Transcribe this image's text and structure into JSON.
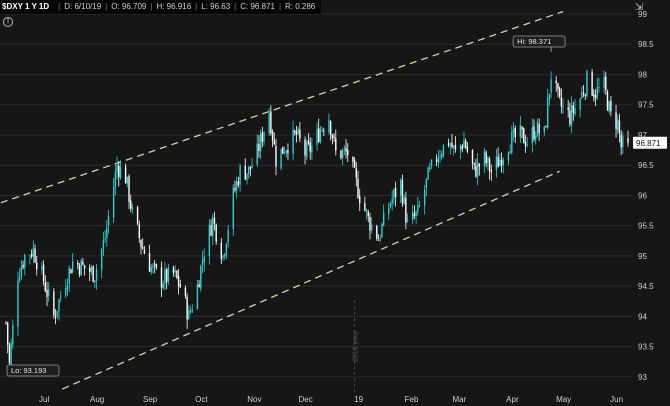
{
  "header": {
    "symbol": "$DXY 1 Y 1D",
    "fields": [
      "D: 6/10/19",
      "O: 96.709",
      "H: 96.916",
      "L: 96.63",
      "C: 96.871",
      "R: 0.286"
    ]
  },
  "icons": {
    "info": "info-icon",
    "corner": "pin-icon"
  },
  "colors": {
    "background": "#161616",
    "up_candle": "#2fd0cf",
    "down_candle": "#ffffff",
    "trendline": "#d7d0a8",
    "grid": "#2b2b2b",
    "price_tag_bg": "#ffffff",
    "price_tag_text": "#111111"
  },
  "chart_data": {
    "type": "candlestick",
    "title": "$DXY 1 Y 1D",
    "y_axis": {
      "side": "right",
      "ticks": [
        "99",
        "98.5",
        "98",
        "97.5",
        "97",
        "96.5",
        "96",
        "95.5",
        "95",
        "94.5",
        "94",
        "93.5",
        "93"
      ],
      "range": [
        92.75,
        99.0
      ]
    },
    "x_axis": {
      "ticks": [
        "Jul",
        "Aug",
        "Sep",
        "Oct",
        "Nov",
        "Dec",
        "19",
        "Feb",
        "Mar",
        "Apr",
        "May",
        "Jun"
      ],
      "range": [
        "2018-06-11",
        "2019-06-10"
      ]
    },
    "year_marker": {
      "date": "2019-01-01",
      "label": "2019 year"
    },
    "last_price": "96.871",
    "annotations": [
      {
        "label": "Hi: 98.371",
        "date": "2019-04-26",
        "value": 98.371
      },
      {
        "label": "Lo: 93.193",
        "date": "2018-06-13",
        "value": 93.193
      }
    ],
    "trendlines": [
      {
        "start": {
          "date": "2018-06-08",
          "value": 95.88
        },
        "end": {
          "date": "2019-05-03",
          "value": 99.04
        }
      },
      {
        "start": {
          "date": "2018-07-14",
          "value": 92.8
        },
        "end": {
          "date": "2019-05-01",
          "value": 96.4
        }
      }
    ],
    "close_path": [
      [
        "2018-06-11",
        93.9
      ],
      [
        "2018-06-13",
        93.2
      ],
      [
        "2018-06-18",
        94.7
      ],
      [
        "2018-06-22",
        95.0
      ],
      [
        "2018-06-27",
        95.1
      ],
      [
        "2018-07-03",
        94.6
      ],
      [
        "2018-07-09",
        94.0
      ],
      [
        "2018-07-16",
        94.6
      ],
      [
        "2018-07-20",
        94.9
      ],
      [
        "2018-07-27",
        94.8
      ],
      [
        "2018-08-02",
        94.7
      ],
      [
        "2018-08-08",
        95.3
      ],
      [
        "2018-08-15",
        96.5
      ],
      [
        "2018-08-20",
        96.3
      ],
      [
        "2018-08-24",
        95.7
      ],
      [
        "2018-08-29",
        95.2
      ],
      [
        "2018-09-04",
        94.8
      ],
      [
        "2018-09-10",
        94.6
      ],
      [
        "2018-09-17",
        94.7
      ],
      [
        "2018-09-21",
        94.5
      ],
      [
        "2018-09-26",
        94.0
      ],
      [
        "2018-10-01",
        94.5
      ],
      [
        "2018-10-05",
        95.1
      ],
      [
        "2018-10-10",
        95.6
      ],
      [
        "2018-10-16",
        95.0
      ],
      [
        "2018-10-22",
        96.0
      ],
      [
        "2018-10-26",
        96.4
      ],
      [
        "2018-10-31",
        96.4
      ],
      [
        "2018-11-05",
        96.7
      ],
      [
        "2018-11-12",
        97.4
      ],
      [
        "2018-11-16",
        96.6
      ],
      [
        "2018-11-21",
        96.8
      ],
      [
        "2018-11-28",
        97.0
      ],
      [
        "2018-12-03",
        96.7
      ],
      [
        "2018-12-07",
        96.8
      ],
      [
        "2018-12-12",
        97.1
      ],
      [
        "2018-12-17",
        97.3
      ],
      [
        "2018-12-21",
        96.7
      ],
      [
        "2018-12-28",
        96.7
      ],
      [
        "2019-01-04",
        96.0
      ],
      [
        "2019-01-09",
        95.6
      ],
      [
        "2019-01-15",
        95.3
      ],
      [
        "2019-01-22",
        95.9
      ],
      [
        "2019-01-28",
        96.2
      ],
      [
        "2019-02-01",
        95.5
      ],
      [
        "2019-02-07",
        95.7
      ],
      [
        "2019-02-13",
        96.3
      ],
      [
        "2019-02-19",
        96.7
      ],
      [
        "2019-02-25",
        96.9
      ],
      [
        "2019-03-01",
        96.7
      ],
      [
        "2019-03-06",
        96.9
      ],
      [
        "2019-03-12",
        96.4
      ],
      [
        "2019-03-18",
        96.6
      ],
      [
        "2019-03-22",
        96.4
      ],
      [
        "2019-03-27",
        96.6
      ],
      [
        "2019-04-02",
        96.9
      ],
      [
        "2019-04-08",
        97.0
      ],
      [
        "2019-04-12",
        96.9
      ],
      [
        "2019-04-17",
        97.1
      ],
      [
        "2019-04-22",
        97.0
      ],
      [
        "2019-04-26",
        98.0
      ],
      [
        "2019-05-01",
        97.5
      ],
      [
        "2019-05-07",
        97.3
      ],
      [
        "2019-05-13",
        97.6
      ],
      [
        "2019-05-17",
        97.9
      ],
      [
        "2019-05-22",
        97.7
      ],
      [
        "2019-05-27",
        97.8
      ],
      [
        "2019-05-31",
        97.3
      ],
      [
        "2019-06-04",
        97.2
      ],
      [
        "2019-06-06",
        96.8
      ],
      [
        "2019-06-10",
        96.871
      ]
    ]
  }
}
